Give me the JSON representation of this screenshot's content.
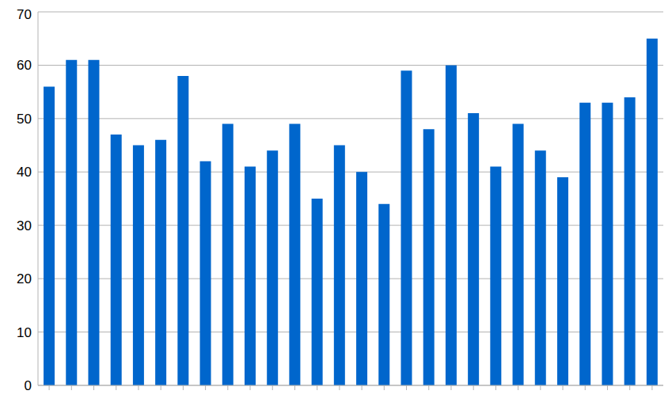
{
  "chart_data": {
    "type": "bar",
    "categories": [
      null,
      null,
      null,
      null,
      null,
      null,
      null,
      null,
      null,
      null,
      null,
      null,
      null,
      null,
      null,
      null,
      null,
      null,
      null,
      null,
      null,
      null,
      null,
      null,
      null,
      null,
      null,
      null
    ],
    "values": [
      56,
      61,
      61,
      47,
      45,
      46,
      58,
      42,
      49,
      41,
      44,
      49,
      35,
      45,
      40,
      34,
      59,
      48,
      60,
      51,
      41,
      49,
      44,
      39,
      53,
      53,
      54,
      65
    ],
    "color": "#0066cc",
    "ylim": [
      0,
      70
    ],
    "yticks": [
      0,
      10,
      20,
      30,
      40,
      50,
      60,
      70
    ],
    "grid": true,
    "tick_labels": "y"
  }
}
